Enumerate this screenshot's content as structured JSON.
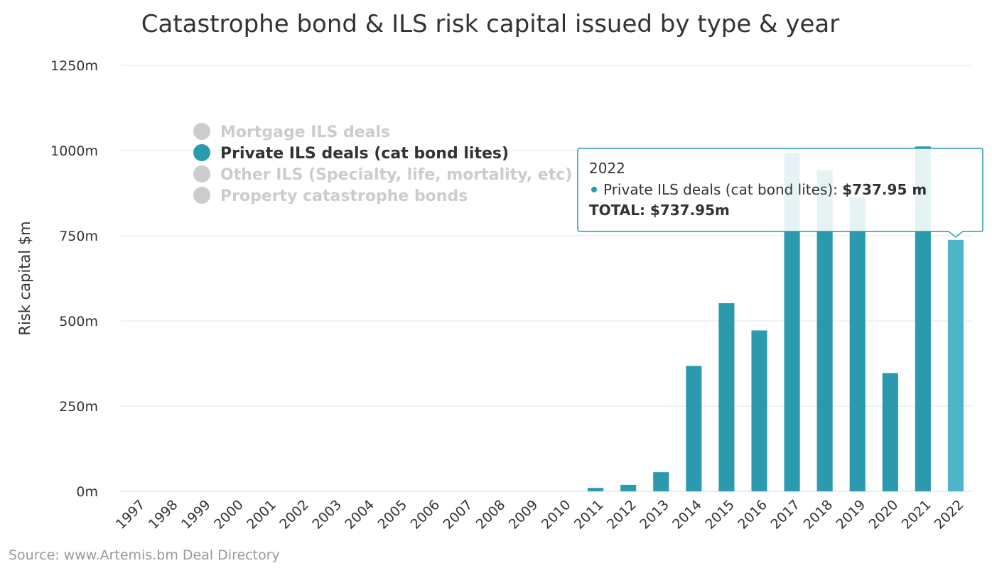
{
  "chart_data": {
    "type": "bar",
    "title": "Catastrophe bond & ILS risk capital issued by type & year",
    "ylabel": "Risk capital $m",
    "ylim": [
      0,
      1250
    ],
    "yticks": [
      {
        "value": 0,
        "label": "0m"
      },
      {
        "value": 250,
        "label": "250m"
      },
      {
        "value": 500,
        "label": "500m"
      },
      {
        "value": 750,
        "label": "750m"
      },
      {
        "value": 1000,
        "label": "1000m"
      },
      {
        "value": 1250,
        "label": "1250m"
      }
    ],
    "categories": [
      "1997",
      "1998",
      "1999",
      "2000",
      "2001",
      "2002",
      "2003",
      "2004",
      "2005",
      "2006",
      "2007",
      "2008",
      "2009",
      "2010",
      "2011",
      "2012",
      "2013",
      "2014",
      "2015",
      "2016",
      "2017",
      "2018",
      "2019",
      "2020",
      "2021",
      "2022"
    ],
    "series": [
      {
        "name": "Private ILS deals (cat bond lites)",
        "color": "#2b9aae",
        "values": [
          0,
          0,
          0,
          0,
          0,
          0,
          0,
          0,
          0,
          0,
          0,
          0,
          0,
          0,
          10,
          19,
          56,
          368,
          552,
          472,
          993,
          942,
          862,
          347,
          1012,
          737.95
        ]
      }
    ],
    "highlighted_category": "2022",
    "highlight_color": "#4db5c8",
    "grid": true,
    "legend": {
      "placement": "top-left",
      "items": [
        {
          "label": "Mortgage ILS deals",
          "active": false
        },
        {
          "label": "Private ILS deals (cat bond lites)",
          "active": true
        },
        {
          "label": "Other ILS (Specialty, life, mortality, etc)",
          "active": false
        },
        {
          "label": "Property catastrophe bonds",
          "active": false
        }
      ]
    },
    "tooltip": {
      "header": "2022",
      "series_label": "Private ILS deals (cat bond lites): ",
      "value_text": "$737.95 m",
      "total_text": "TOTAL: $737.95m"
    },
    "credits": "Source: www.Artemis.bm Deal Directory"
  },
  "colors": {
    "inactive_legend": "#cccccc",
    "active_legend_text": "#333333",
    "grid": "#e6e6e6",
    "tooltip_border": "#2b9aae"
  }
}
